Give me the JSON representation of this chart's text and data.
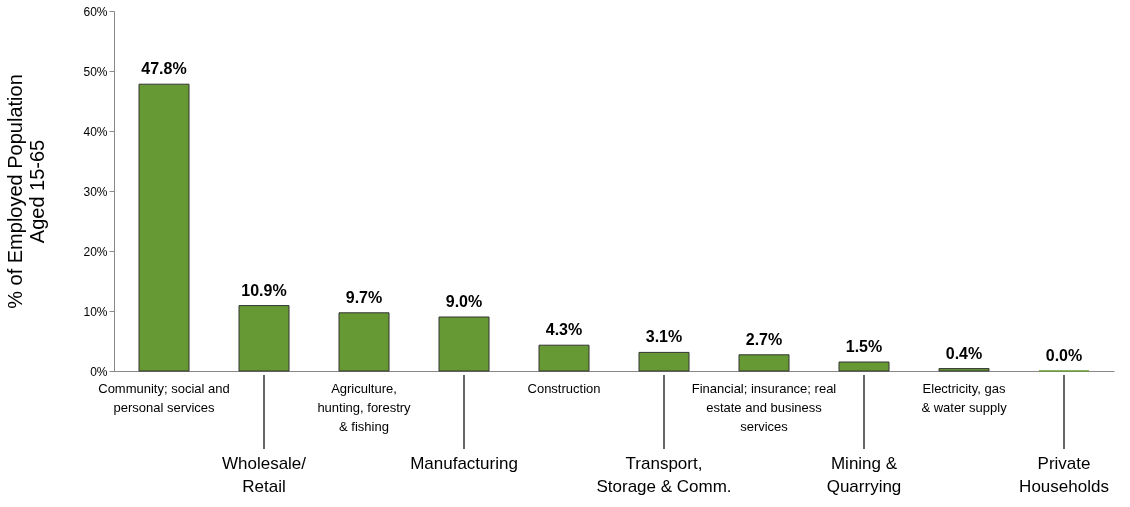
{
  "chart_data": {
    "type": "bar",
    "ylabel": "% of Employed Population\nAged 15-65",
    "categories": [
      "Community;  social and\npersonal services",
      "Wholesale/\nRetail",
      "Agriculture,\nhunting, forestry\n& fishing",
      "Manufacturing",
      "Construction",
      "Transport,\nStorage & Comm.",
      "Financial; insurance; real\nestate and business\nservices",
      "Mining &\nQuarrying",
      "Electricity, gas\n& water supply",
      "Private\nHouseholds"
    ],
    "values": [
      47.8,
      10.9,
      9.7,
      9.0,
      4.3,
      3.1,
      2.7,
      1.5,
      0.4,
      0.0
    ],
    "value_labels": [
      "47.8%",
      "10.9%",
      "9.7%",
      "9.0%",
      "4.3%",
      "3.1%",
      "2.7%",
      "1.5%",
      "0.4%",
      "0.0%"
    ],
    "color": "#669933",
    "ylim": [
      0,
      60
    ],
    "yticks": [
      {
        "value": 0,
        "label": "0%"
      },
      {
        "value": 10,
        "label": "10%"
      },
      {
        "value": 20,
        "label": "20%"
      },
      {
        "value": 30,
        "label": "30%"
      },
      {
        "value": 40,
        "label": "40%"
      },
      {
        "value": 50,
        "label": "50%"
      },
      {
        "value": 60,
        "label": "60%"
      }
    ],
    "grid": false
  }
}
